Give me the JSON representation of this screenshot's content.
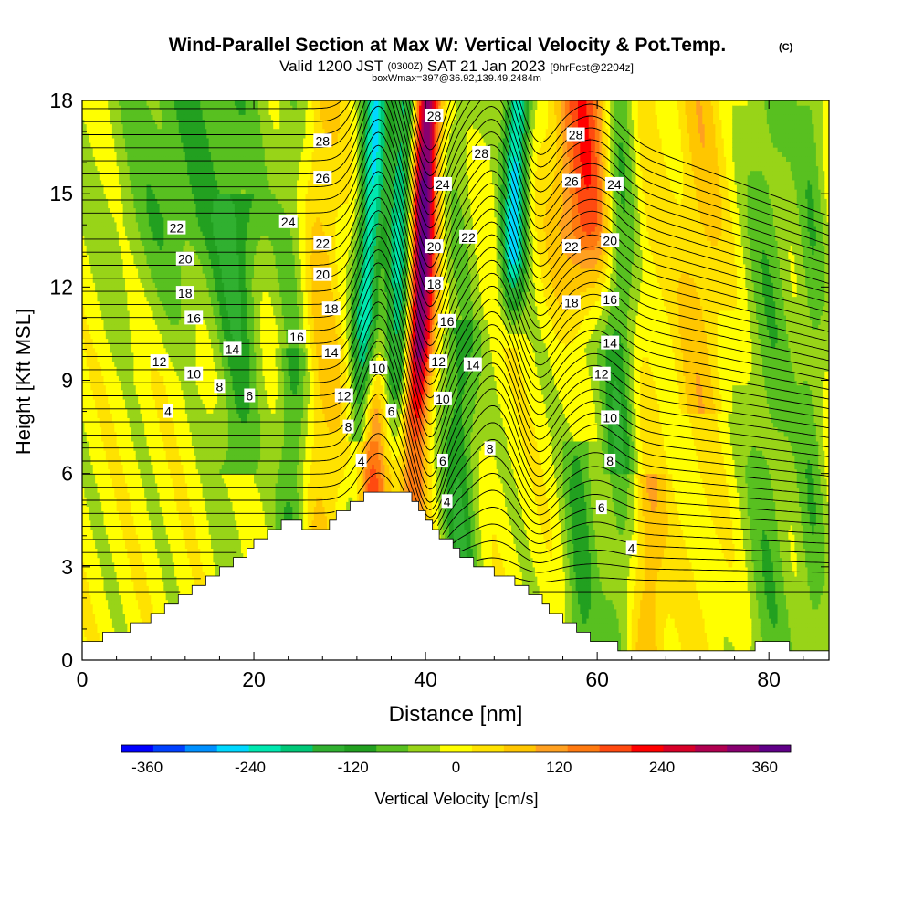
{
  "chart_data": {
    "type": "heatmap",
    "title": "Wind-Parallel Section at Max W: Vertical Velocity & Pot.Temp.",
    "title_tag": "(C)",
    "subtitle_prefix": "Valid 1200 JST",
    "subtitle_utc": "(0300Z)",
    "subtitle_date": "SAT 21 Jan 2023",
    "subtitle_fcst": "[9hrFcst@2204z]",
    "subtitle2": "boxWmax=397@36.92,139.49,2484m",
    "xlabel": "Distance [nm]",
    "ylabel": "Height [Kft MSL]",
    "xlim": [
      0,
      87
    ],
    "ylim": [
      0,
      18
    ],
    "x_ticks": [
      "0",
      "20",
      "40",
      "60",
      "80"
    ],
    "y_ticks": [
      "0",
      "3",
      "6",
      "9",
      "12",
      "15",
      "18"
    ],
    "colorbar": {
      "label": "Vertical Velocity [cm/s]",
      "min": -390,
      "max": 390,
      "tick_labels": [
        "-360",
        "-240",
        "-120",
        "0",
        "120",
        "240",
        "360"
      ],
      "colors": [
        "#0000ff",
        "#0040ff",
        "#0090ff",
        "#00d8ff",
        "#00e8b0",
        "#00c878",
        "#30b030",
        "#22a020",
        "#58c020",
        "#98d418",
        "#ffff00",
        "#ffe200",
        "#ffc600",
        "#ffa020",
        "#ff7a10",
        "#ff4a10",
        "#ff0000",
        "#d80028",
        "#b00050",
        "#880070",
        "#600088"
      ]
    },
    "potential_temperature_contours": {
      "units": "C",
      "labels": [
        "4",
        "6",
        "8",
        "10",
        "12",
        "14",
        "16",
        "18",
        "20",
        "22",
        "24",
        "26",
        "28"
      ]
    },
    "terrain": {
      "x": [
        0,
        4,
        8,
        12,
        16,
        20,
        24,
        27,
        30,
        33,
        35,
        37,
        39,
        41,
        44,
        48,
        52,
        56,
        60,
        64,
        68,
        72,
        76,
        80,
        84,
        87
      ],
      "z": [
        0.6,
        0.9,
        1.4,
        2.2,
        2.9,
        3.8,
        4.5,
        4.1,
        4.8,
        5.4,
        5.4,
        5.4,
        4.9,
        4.2,
        3.3,
        2.8,
        2.2,
        1.2,
        0.6,
        0.3,
        0.3,
        0.3,
        0.3,
        0.6,
        0.3,
        0.3
      ]
    }
  }
}
